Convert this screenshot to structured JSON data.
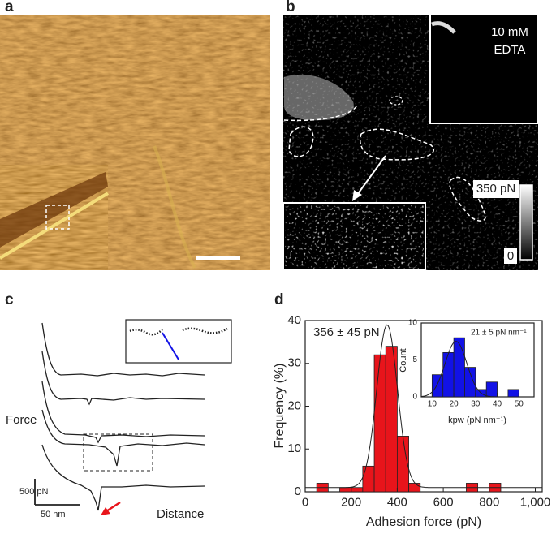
{
  "figure": {
    "panel_labels": [
      "a",
      "b",
      "c",
      "d"
    ],
    "panel_b": {
      "condition": [
        "10 mM",
        "EDTA"
      ],
      "colorbar_max": "350 pN",
      "colorbar_min": "0"
    },
    "panel_c": {
      "y_label": "Force",
      "x_label": "Distance",
      "scale_force": "500 pN",
      "scale_distance": "50 nm"
    }
  },
  "chart_data": [
    {
      "type": "histogram",
      "x_label": "Adhesion force (pN)",
      "y_label": "Frequency (%)",
      "annotation": "356 ± 45 pN",
      "bins": [
        50,
        100,
        150,
        200,
        250,
        300,
        350,
        400,
        450,
        500,
        550,
        600,
        650,
        700,
        750,
        800,
        850
      ],
      "values": [
        2,
        0,
        1,
        1,
        6,
        32,
        34,
        13,
        2,
        0,
        0,
        0,
        0,
        2,
        0,
        2
      ],
      "color": "#e8141b",
      "fit": {
        "mean": 356,
        "sd": 45,
        "peak": 39,
        "baseline": 1
      },
      "xlim": [
        0,
        1030
      ],
      "xticks": [
        0,
        200,
        400,
        600,
        800,
        {
          "value": 1000,
          "label": "1,000"
        }
      ],
      "ylim": [
        0,
        40
      ],
      "yticks": [
        0,
        10,
        20,
        30,
        40
      ]
    },
    {
      "type": "histogram",
      "x_label": "kpw (pN nm⁻¹)",
      "y_label": "Count",
      "annotation": "21 ± 5 pN nm⁻¹",
      "bins": [
        10,
        15,
        20,
        25,
        30,
        35,
        40,
        45,
        50
      ],
      "values": [
        3,
        6,
        8,
        4,
        1,
        2,
        0,
        1
      ],
      "color": "#1212e6",
      "fit": {
        "mean": 21,
        "sd": 5,
        "peak": 7.5,
        "baseline": 0
      },
      "xlim": [
        5,
        57
      ],
      "xticks": [
        10,
        20,
        30,
        40,
        50
      ],
      "ylim": [
        0,
        10
      ],
      "yticks": [
        0,
        5,
        10
      ]
    }
  ]
}
